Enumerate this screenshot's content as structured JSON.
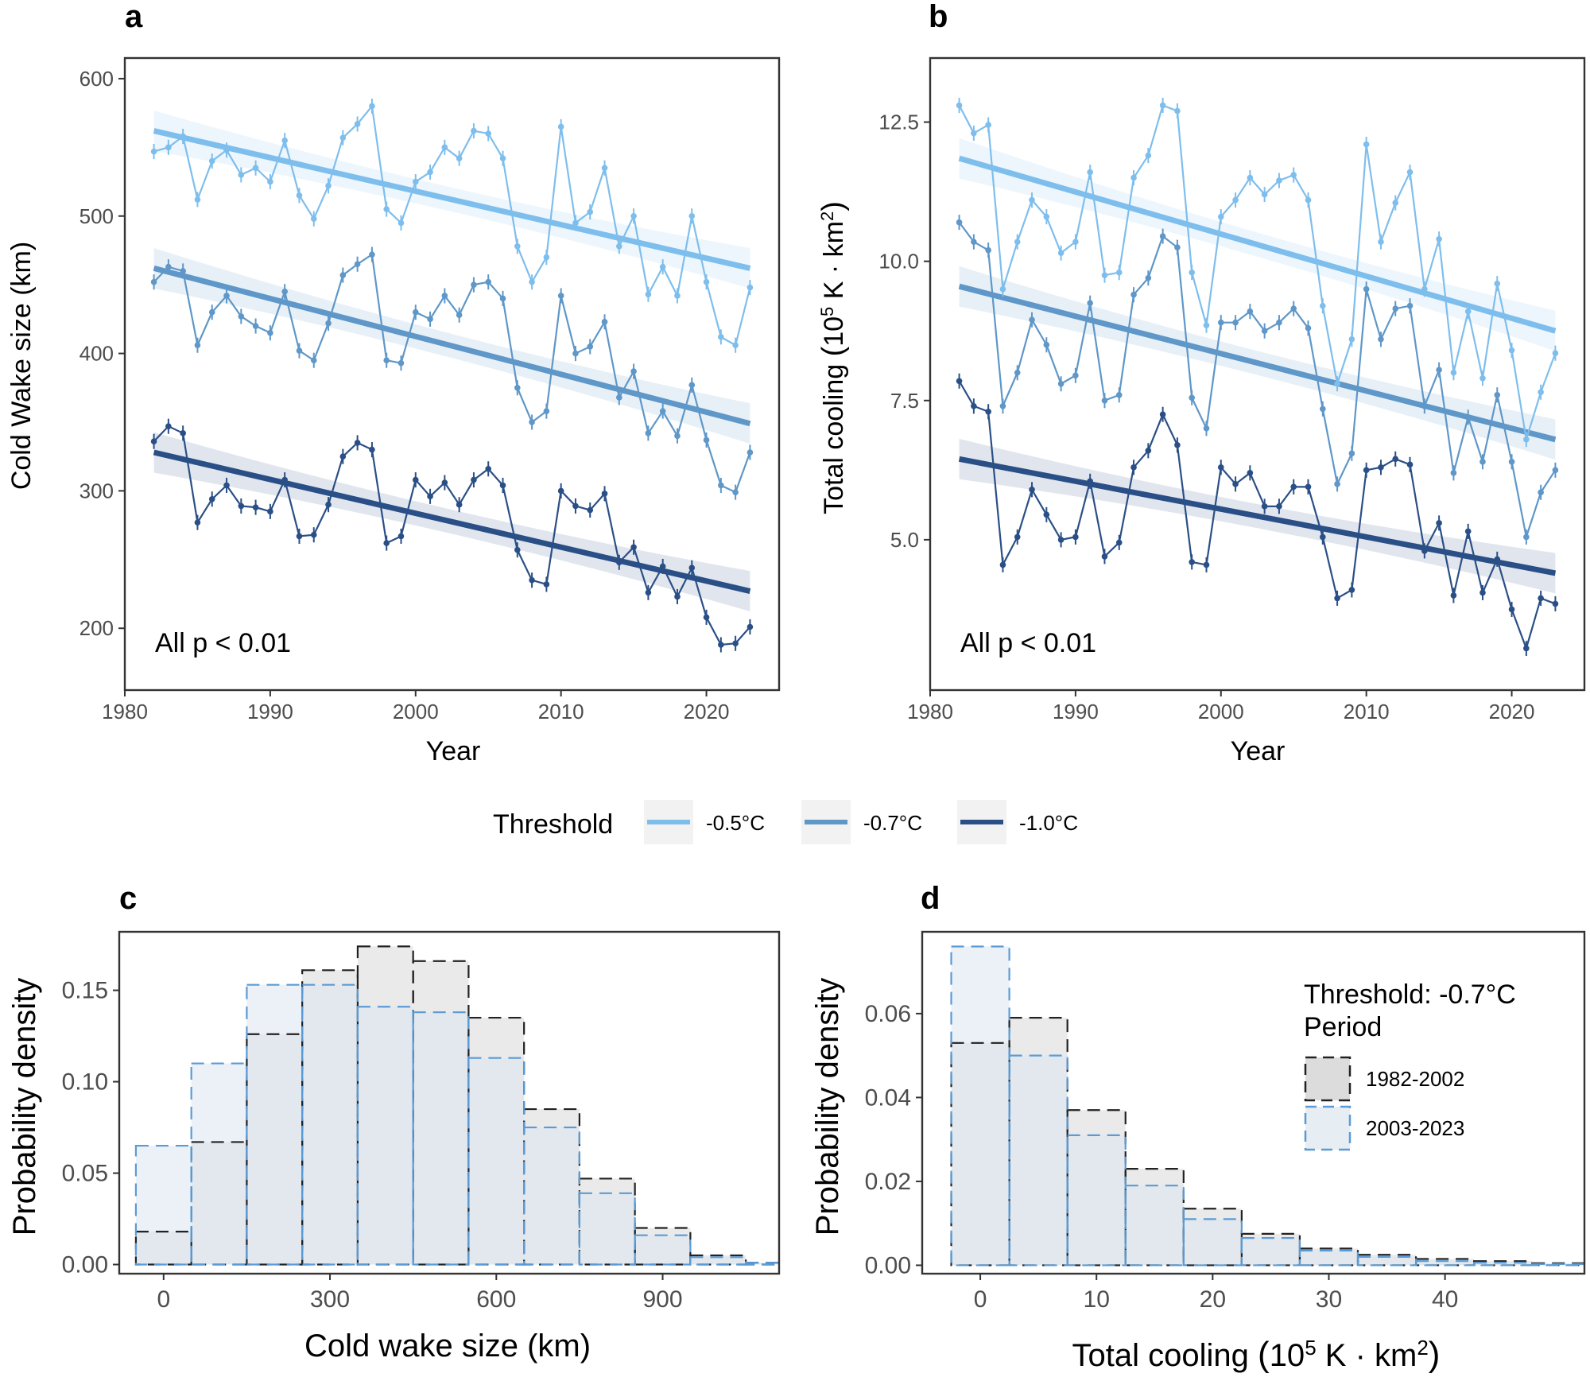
{
  "chart_data": [
    {
      "panel": "a",
      "type": "line",
      "xlabel": "Year",
      "ylabel": "Cold Wake size (km)",
      "xlim": [
        1980,
        2025
      ],
      "ylim": [
        155,
        615
      ],
      "xticks": [
        1980,
        1990,
        2000,
        2010,
        2020
      ],
      "yticks": [
        200,
        300,
        400,
        500,
        600
      ],
      "annotation": "All  p < 0.01",
      "x": [
        1982,
        1983,
        1984,
        1985,
        1986,
        1987,
        1988,
        1989,
        1990,
        1991,
        1992,
        1993,
        1994,
        1995,
        1996,
        1997,
        1998,
        1999,
        2000,
        2001,
        2002,
        2003,
        2004,
        2005,
        2006,
        2007,
        2008,
        2009,
        2010,
        2011,
        2012,
        2013,
        2014,
        2015,
        2016,
        2017,
        2018,
        2019,
        2020,
        2021,
        2022,
        2023
      ],
      "series": [
        {
          "name": "-0.5°C",
          "color": "#7ebeed",
          "values": [
            547,
            550,
            558,
            512,
            540,
            548,
            530,
            535,
            525,
            555,
            515,
            498,
            522,
            557,
            567,
            580,
            505,
            495,
            525,
            532,
            550,
            542,
            562,
            560,
            542,
            478,
            452,
            470,
            565,
            495,
            503,
            535,
            478,
            500,
            443,
            463,
            442,
            500,
            452,
            412,
            406,
            448
          ],
          "trend": [
            562,
            462
          ]
        },
        {
          "name": "-0.7°C",
          "color": "#5e97c8",
          "values": [
            452,
            463,
            460,
            406,
            430,
            442,
            427,
            420,
            415,
            445,
            402,
            395,
            422,
            457,
            465,
            472,
            395,
            393,
            430,
            425,
            442,
            428,
            450,
            452,
            440,
            375,
            350,
            358,
            442,
            400,
            405,
            423,
            368,
            387,
            342,
            358,
            340,
            377,
            337,
            304,
            299,
            328
          ],
          "trend": [
            462,
            349
          ]
        },
        {
          "name": "-1.0°C",
          "color": "#2a4f86",
          "values": [
            336,
            347,
            342,
            277,
            294,
            304,
            289,
            288,
            285,
            308,
            267,
            268,
            290,
            325,
            335,
            330,
            262,
            267,
            308,
            296,
            306,
            290,
            308,
            316,
            304,
            257,
            235,
            232,
            300,
            289,
            286,
            298,
            248,
            259,
            226,
            245,
            223,
            244,
            208,
            188,
            189,
            201
          ],
          "trend": [
            328,
            227
          ]
        }
      ]
    },
    {
      "panel": "b",
      "type": "line",
      "xlabel": "Year",
      "ylabel": "Total cooling (10^5 K· km^2)",
      "xlim": [
        1980,
        2025
      ],
      "ylim": [
        2.3,
        13.65
      ],
      "xticks": [
        1980,
        1990,
        2000,
        2010,
        2020
      ],
      "yticks": [
        5.0,
        7.5,
        10.0,
        12.5
      ],
      "annotation": "All  p < 0.01",
      "x": [
        1982,
        1983,
        1984,
        1985,
        1986,
        1987,
        1988,
        1989,
        1990,
        1991,
        1992,
        1993,
        1994,
        1995,
        1996,
        1997,
        1998,
        1999,
        2000,
        2001,
        2002,
        2003,
        2004,
        2005,
        2006,
        2007,
        2008,
        2009,
        2010,
        2011,
        2012,
        2013,
        2014,
        2015,
        2016,
        2017,
        2018,
        2019,
        2020,
        2021,
        2022,
        2023
      ],
      "series": [
        {
          "name": "-0.5°C",
          "color": "#7ebeed",
          "values": [
            12.8,
            12.3,
            12.45,
            9.5,
            10.35,
            11.1,
            10.8,
            10.15,
            10.35,
            11.6,
            9.75,
            9.8,
            11.5,
            11.9,
            12.8,
            12.7,
            9.8,
            8.85,
            10.8,
            11.1,
            11.5,
            11.2,
            11.45,
            11.55,
            11.1,
            9.2,
            7.8,
            8.6,
            12.1,
            10.35,
            11.05,
            11.6,
            9.5,
            10.4,
            8.0,
            9.1,
            7.9,
            9.6,
            8.4,
            6.8,
            7.65,
            8.35
          ],
          "trend": [
            11.85,
            8.75
          ]
        },
        {
          "name": "-0.7°C",
          "color": "#5e97c8",
          "values": [
            10.7,
            10.35,
            10.2,
            7.4,
            8.0,
            8.95,
            8.5,
            7.8,
            7.95,
            9.25,
            7.5,
            7.6,
            9.4,
            9.7,
            10.45,
            10.25,
            7.55,
            7.0,
            8.9,
            8.9,
            9.1,
            8.75,
            8.9,
            9.15,
            8.8,
            7.35,
            6.0,
            6.55,
            9.5,
            8.6,
            9.15,
            9.2,
            7.4,
            8.05,
            6.2,
            7.2,
            6.4,
            7.6,
            6.4,
            5.05,
            5.85,
            6.25
          ],
          "trend": [
            9.55,
            6.8
          ]
        },
        {
          "name": "-1.0°C",
          "color": "#2a4f86",
          "values": [
            7.85,
            7.4,
            7.3,
            4.55,
            5.05,
            5.9,
            5.45,
            5.0,
            5.05,
            6.05,
            4.7,
            4.95,
            6.3,
            6.6,
            7.25,
            6.7,
            4.6,
            4.55,
            6.3,
            6.0,
            6.2,
            5.6,
            5.6,
            5.95,
            5.95,
            5.05,
            3.95,
            4.1,
            6.25,
            6.3,
            6.45,
            6.35,
            4.8,
            5.3,
            4.0,
            5.15,
            4.05,
            4.65,
            3.75,
            3.05,
            3.95,
            3.85
          ],
          "trend": [
            6.45,
            4.4
          ]
        }
      ]
    },
    {
      "panel": "c",
      "type": "histogram",
      "xlabel": "Cold wake size (km)",
      "ylabel": "Probability density",
      "xlim": [
        -80,
        1110
      ],
      "ylim": [
        -0.005,
        0.182
      ],
      "xticks": [
        0,
        300,
        600,
        900
      ],
      "yticks": [
        0.0,
        0.05,
        0.1,
        0.15
      ],
      "ytick_labels": [
        "0.00",
        "0.05",
        "0.10",
        "0.15"
      ],
      "bin_edges": [
        -50,
        50,
        150,
        250,
        350,
        450,
        550,
        650,
        750,
        850,
        950,
        1050,
        1150
      ],
      "series": [
        {
          "name": "1982-2002",
          "color": "#222222",
          "values": [
            0.018,
            0.067,
            0.126,
            0.161,
            0.174,
            0.166,
            0.135,
            0.085,
            0.047,
            0.02,
            0.005,
            0.001
          ]
        },
        {
          "name": "2003-2023",
          "color": "#5b9bd5",
          "values": [
            0.065,
            0.11,
            0.153,
            0.153,
            0.141,
            0.138,
            0.113,
            0.075,
            0.039,
            0.016,
            0.004,
            0.001
          ]
        }
      ]
    },
    {
      "panel": "d",
      "type": "histogram",
      "xlabel": "Total cooling (10^5 K· km^2)",
      "ylabel": "Probability density",
      "xlim": [
        -5,
        52
      ],
      "ylim": [
        -0.002,
        0.0795
      ],
      "xticks": [
        0,
        10,
        20,
        30,
        40
      ],
      "yticks": [
        0.0,
        0.02,
        0.04,
        0.06
      ],
      "ytick_labels": [
        "0.00",
        "0.02",
        "0.04",
        "0.06"
      ],
      "bin_edges": [
        -2.5,
        2.5,
        7.5,
        12.5,
        17.5,
        22.5,
        27.5,
        32.5,
        37.5,
        42.5,
        47.5,
        52.5
      ],
      "series": [
        {
          "name": "1982-2002",
          "color": "#222222",
          "values": [
            0.053,
            0.059,
            0.037,
            0.023,
            0.0135,
            0.0075,
            0.004,
            0.0025,
            0.0015,
            0.001,
            0.0005
          ]
        },
        {
          "name": "2003-2023",
          "color": "#5b9bd5",
          "values": [
            0.076,
            0.05,
            0.031,
            0.019,
            0.011,
            0.0065,
            0.0035,
            0.002,
            0.001,
            0.0006,
            0.0003
          ]
        }
      ]
    }
  ],
  "legend_main": {
    "title": "Threshold",
    "items": [
      {
        "label": "-0.5°C",
        "color": "#7ebeed"
      },
      {
        "label": "-0.7°C",
        "color": "#5e97c8"
      },
      {
        "label": "-1.0°C",
        "color": "#2a4f86"
      }
    ]
  },
  "legend_d": {
    "title1": "Threshold: -0.7°C",
    "title2": "Period",
    "items": [
      {
        "label": "1982-2002",
        "color": "#222222"
      },
      {
        "label": "2003-2023",
        "color": "#5b9bd5"
      }
    ]
  }
}
